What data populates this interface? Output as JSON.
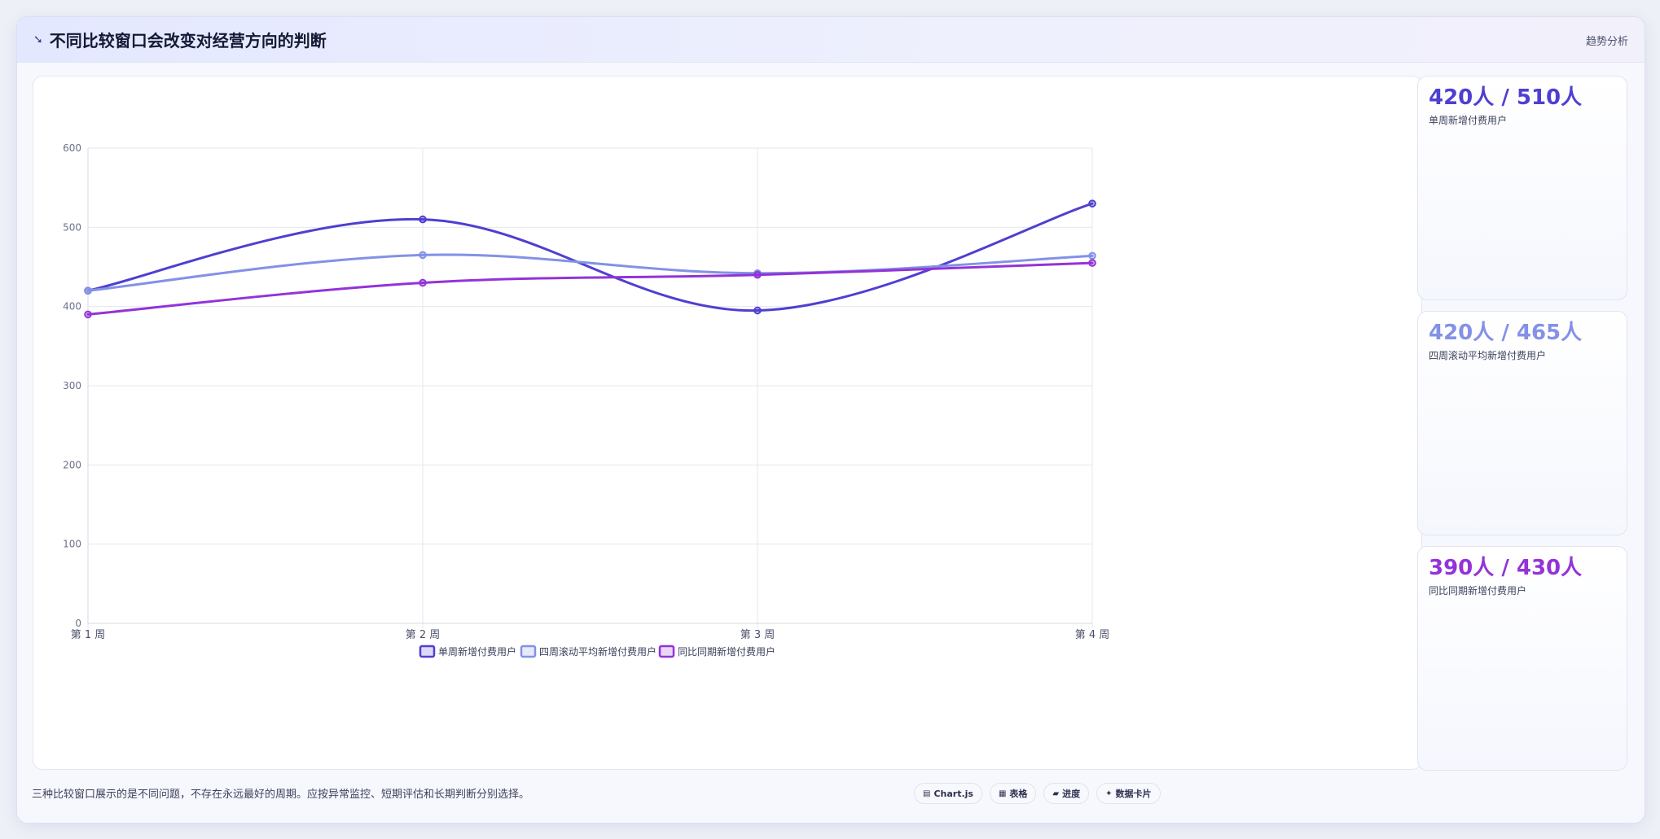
{
  "header": {
    "icon": "trend-line-icon",
    "title": "不同比较窗口会改变对经营方向的判断",
    "tag": "趋势分析"
  },
  "chart_data": {
    "type": "line",
    "categories": [
      "第 1 周",
      "第 2 周",
      "第 3 周",
      "第 4 周"
    ],
    "series": [
      {
        "name": "单周新增付费用户",
        "values": [
          420,
          510,
          395,
          530
        ],
        "color": "#4f3fd1"
      },
      {
        "name": "四周滚动平均新增付费用户",
        "values": [
          420,
          465,
          442,
          464
        ],
        "color": "#8391e6"
      },
      {
        "name": "同比同期新增付费用户",
        "values": [
          390,
          430,
          440,
          455
        ],
        "color": "#9333d8"
      }
    ],
    "ylim": [
      0,
      600
    ],
    "yticks": [
      0,
      100,
      200,
      300,
      400,
      500,
      600
    ],
    "grid": true,
    "legend": "bottom",
    "xlabel": "",
    "ylabel": ""
  },
  "cards": [
    {
      "value": "420人 / 510人",
      "label": "单周新增付费用户",
      "color": "#4f3fd1"
    },
    {
      "value": "420人 / 465人",
      "label": "四周滚动平均新增付费用户",
      "color": "#8391e6"
    },
    {
      "value": "390人 / 430人",
      "label": "同比同期新增付费用户",
      "color": "#9333d8"
    }
  ],
  "footer": {
    "note": "三种比较窗口展示的是不同问题，不存在永远最好的周期。应按异常监控、短期评估和长期判断分别选择。",
    "pills": [
      {
        "icon": "▤",
        "label": "Chart.js"
      },
      {
        "icon": "▦",
        "label": "表格"
      },
      {
        "icon": "▰",
        "label": "进度"
      },
      {
        "icon": "✦",
        "label": "数据卡片"
      }
    ]
  }
}
